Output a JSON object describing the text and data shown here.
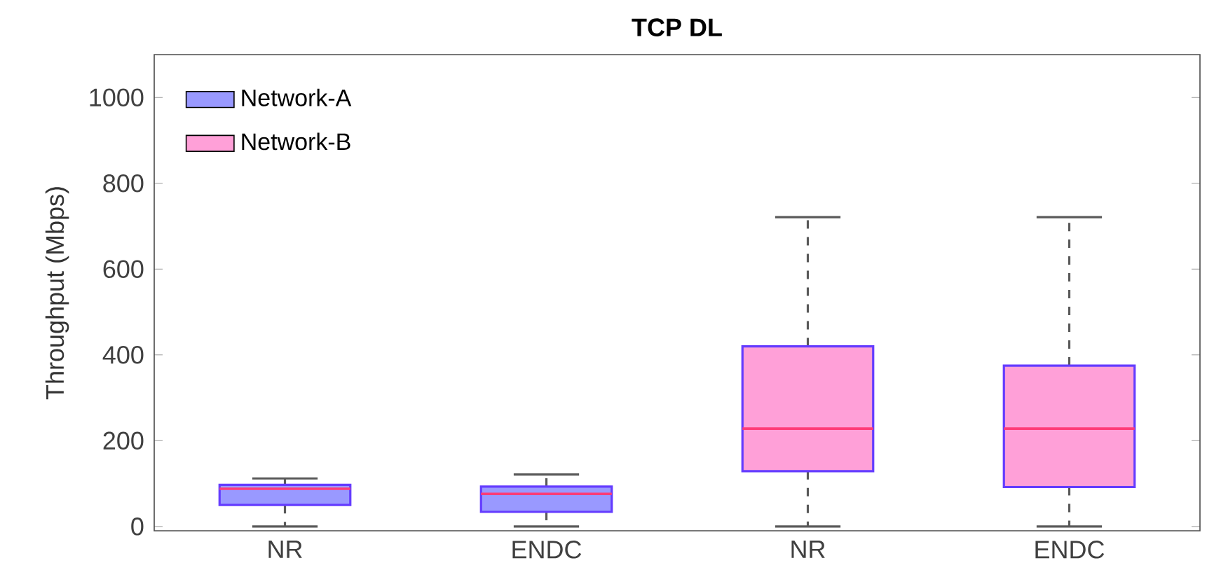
{
  "chart_data": {
    "type": "box",
    "title": "TCP DL",
    "ylabel": "Throughput (Mbps)",
    "categories": [
      "NR",
      "ENDC",
      "NR",
      "ENDC"
    ],
    "series": [
      {
        "name": "Network-A",
        "color": "#9999ff",
        "boxes": [
          {
            "low": 0,
            "q1": 50,
            "median": 88,
            "q3": 97,
            "high": 112
          },
          {
            "low": 0,
            "q1": 34,
            "median": 76,
            "q3": 93,
            "high": 121
          },
          null,
          null
        ]
      },
      {
        "name": "Network-B",
        "color": "#ffa0d8",
        "boxes": [
          null,
          null,
          {
            "low": 0,
            "q1": 129,
            "median": 228,
            "q3": 420,
            "high": 721
          },
          {
            "low": 0,
            "q1": 92,
            "median": 228,
            "q3": 375,
            "high": 721
          }
        ]
      }
    ],
    "ylim": [
      -10,
      1100
    ],
    "yticks": [
      0,
      200,
      400,
      600,
      800,
      1000
    ],
    "grid": false,
    "legend": "top left"
  }
}
